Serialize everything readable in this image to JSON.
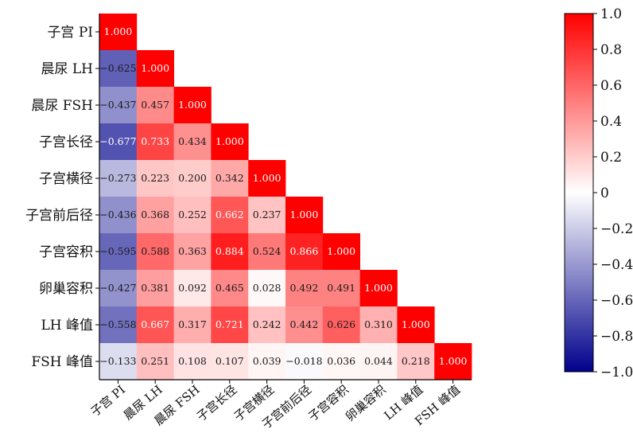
{
  "chart_data": {
    "type": "heatmap",
    "title": "",
    "variables": [
      "子宫PI",
      "晨尿LH",
      "晨尿FSH",
      "子宫长径",
      "子宫横径",
      "子宫前后径",
      "子宫容积",
      "卵巢容积",
      "LH峰值",
      "FSH峰值"
    ],
    "row_labels": [
      "子宫 PI",
      "晨尿 LH",
      "晨尿 FSH",
      "子宫长径",
      "子宫横径",
      "子宫前后径",
      "子宫容积",
      "卵巢容积",
      "LH 峰值",
      "FSH 峰值"
    ],
    "col_labels": [
      "子宫 PI",
      "晨尿 LH",
      "晨尿 FSH",
      "子宫长径",
      "子宫横径",
      "子宫前后径",
      "子宫容积",
      "卵巢容积",
      "LH 峰值",
      "FSH 峰值"
    ],
    "matrix": [
      [
        1.0
      ],
      [
        -0.625,
        1.0
      ],
      [
        -0.437,
        0.457,
        1.0
      ],
      [
        -0.677,
        0.733,
        0.434,
        1.0
      ],
      [
        -0.273,
        0.223,
        0.2,
        0.342,
        1.0
      ],
      [
        -0.436,
        0.368,
        0.252,
        0.662,
        0.237,
        1.0
      ],
      [
        -0.595,
        0.588,
        0.363,
        0.884,
        0.524,
        0.866,
        1.0
      ],
      [
        -0.427,
        0.381,
        0.092,
        0.465,
        0.028,
        0.492,
        0.491,
        1.0
      ],
      [
        -0.558,
        0.667,
        0.317,
        0.721,
        0.242,
        0.442,
        0.626,
        0.31,
        1.0
      ],
      [
        -0.133,
        0.251,
        0.108,
        0.107,
        0.039,
        -0.018,
        0.036,
        0.044,
        0.218,
        1.0
      ]
    ],
    "colorbar": {
      "range": [
        -1.0,
        1.0
      ],
      "ticks": [
        1.0,
        0.8,
        0.6,
        0.4,
        0.2,
        0,
        -0.2,
        -0.4,
        -0.6,
        -0.8,
        -1.0
      ],
      "tick_labels": [
        "1.0",
        "0.8",
        "0.6",
        "0.4",
        "0.2",
        "0",
        "−0.2",
        "−0.4",
        "−0.6",
        "−0.8",
        "−1.0"
      ],
      "colors": {
        "low": "#00008b",
        "mid": "#ffffff",
        "high": "#ff0000"
      }
    },
    "grid": false,
    "legend_position": "right"
  }
}
